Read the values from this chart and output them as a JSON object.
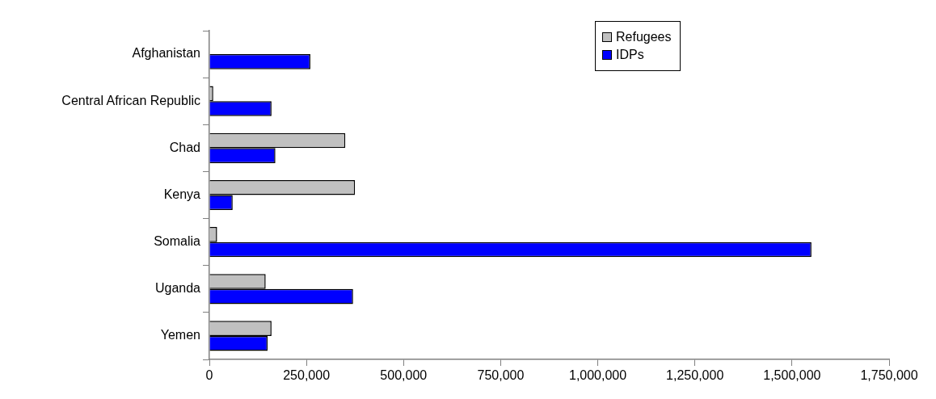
{
  "chart_data": {
    "type": "bar",
    "orientation": "horizontal",
    "categories": [
      "Afghanistan",
      "Central African Republic",
      "Chad",
      "Kenya",
      "Somalia",
      "Uganda",
      "Yemen"
    ],
    "series": [
      {
        "name": "Refugees",
        "color": "#c0c0c0",
        "values": [
          null,
          10000,
          350000,
          375000,
          20000,
          145000,
          160000
        ]
      },
      {
        "name": "IDPs",
        "color": "#0000ff",
        "values": [
          260000,
          160000,
          170000,
          60000,
          1550000,
          370000,
          150000
        ]
      }
    ],
    "xlim": [
      0,
      1750000
    ],
    "xticks": [
      {
        "value": 0,
        "label": "0"
      },
      {
        "value": 250000,
        "label": "250,000"
      },
      {
        "value": 500000,
        "label": "500,000"
      },
      {
        "value": 750000,
        "label": "750,000"
      },
      {
        "value": 1000000,
        "label": "1,000,000"
      },
      {
        "value": 1250000,
        "label": "1,250,000"
      },
      {
        "value": 1500000,
        "label": "1,500,000"
      },
      {
        "value": 1750000,
        "label": "1,750,000"
      }
    ],
    "grid": false,
    "legend": "top right"
  }
}
